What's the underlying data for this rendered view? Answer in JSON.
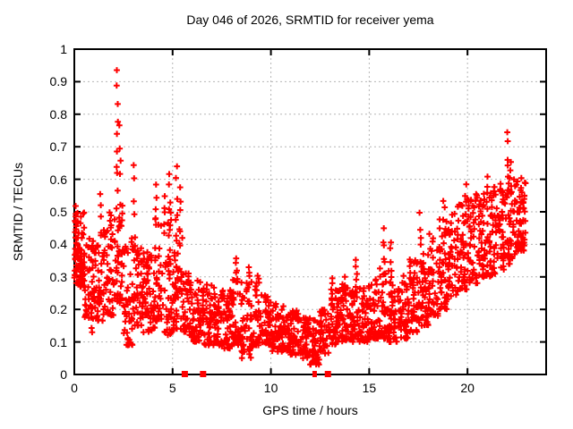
{
  "title": "Day 046 of 2026, SRMTID for receiver yema",
  "x_axis": {
    "label": "GPS time / hours",
    "min": 0,
    "max": 24,
    "tick_values": [
      0,
      5,
      10,
      15,
      20
    ],
    "tick_labels": [
      "0",
      "5",
      "10",
      "15",
      "20"
    ]
  },
  "y_axis": {
    "label": "SRMTID / TECUs",
    "min": 0,
    "max": 1,
    "tick_values": [
      0,
      0.1,
      0.2,
      0.3,
      0.4,
      0.5,
      0.6,
      0.7,
      0.8,
      0.9,
      1
    ],
    "tick_labels": [
      "0",
      "0.1",
      "0.2",
      "0.3",
      "0.4",
      "0.5",
      "0.6",
      "0.7",
      "0.8",
      "0.9",
      "1"
    ]
  },
  "colors": {
    "points": "#ff0000",
    "grid": "#b5b5b5",
    "axis": "#000000",
    "background": "#ffffff"
  },
  "chart_data": {
    "type": "scatter",
    "series_name": "SRMTID",
    "marker": "plus",
    "grid": "on-dashed-both-axes",
    "legend": "none",
    "xlim": [
      0,
      24
    ],
    "ylim": [
      0,
      1
    ],
    "data_time_extent_hours": [
      0.0,
      23.0
    ],
    "seed": 46,
    "envelope_bins": {
      "bin_width_hours": 0.5,
      "columns": [
        "t_start",
        "y_min",
        "y_max",
        "count"
      ],
      "rows": [
        [
          0.0,
          0.27,
          0.5,
          70
        ],
        [
          0.5,
          0.17,
          0.42,
          48
        ],
        [
          1.0,
          0.16,
          0.4,
          46
        ],
        [
          1.5,
          0.18,
          0.5,
          46
        ],
        [
          2.0,
          0.22,
          0.52,
          42
        ],
        [
          2.5,
          0.09,
          0.42,
          46
        ],
        [
          3.0,
          0.15,
          0.45,
          46
        ],
        [
          3.5,
          0.13,
          0.38,
          45
        ],
        [
          4.0,
          0.14,
          0.48,
          45
        ],
        [
          4.5,
          0.12,
          0.5,
          45
        ],
        [
          5.0,
          0.14,
          0.45,
          46
        ],
        [
          5.5,
          0.12,
          0.33,
          44
        ],
        [
          6.0,
          0.1,
          0.3,
          46
        ],
        [
          6.5,
          0.09,
          0.28,
          46
        ],
        [
          7.0,
          0.09,
          0.27,
          46
        ],
        [
          7.5,
          0.08,
          0.26,
          46
        ],
        [
          8.0,
          0.09,
          0.3,
          46
        ],
        [
          8.5,
          0.05,
          0.3,
          44
        ],
        [
          9.0,
          0.09,
          0.3,
          46
        ],
        [
          9.5,
          0.09,
          0.25,
          46
        ],
        [
          10.0,
          0.07,
          0.22,
          46
        ],
        [
          10.5,
          0.07,
          0.21,
          46
        ],
        [
          11.0,
          0.06,
          0.2,
          46
        ],
        [
          11.5,
          0.05,
          0.18,
          46
        ],
        [
          12.0,
          0.03,
          0.18,
          44
        ],
        [
          12.5,
          0.06,
          0.2,
          44
        ],
        [
          13.0,
          0.09,
          0.26,
          46
        ],
        [
          13.5,
          0.1,
          0.28,
          46
        ],
        [
          14.0,
          0.1,
          0.26,
          46
        ],
        [
          14.5,
          0.1,
          0.28,
          46
        ],
        [
          15.0,
          0.11,
          0.3,
          46
        ],
        [
          15.5,
          0.11,
          0.33,
          46
        ],
        [
          16.0,
          0.1,
          0.3,
          46
        ],
        [
          16.5,
          0.11,
          0.32,
          46
        ],
        [
          17.0,
          0.13,
          0.36,
          46
        ],
        [
          17.5,
          0.15,
          0.4,
          46
        ],
        [
          18.0,
          0.18,
          0.44,
          46
        ],
        [
          18.5,
          0.2,
          0.48,
          46
        ],
        [
          19.0,
          0.24,
          0.5,
          46
        ],
        [
          19.5,
          0.26,
          0.54,
          46
        ],
        [
          20.0,
          0.28,
          0.56,
          46
        ],
        [
          20.5,
          0.3,
          0.58,
          46
        ],
        [
          21.0,
          0.3,
          0.58,
          46
        ],
        [
          21.5,
          0.32,
          0.6,
          46
        ],
        [
          22.0,
          0.34,
          0.62,
          46
        ],
        [
          22.5,
          0.38,
          0.6,
          52
        ]
      ]
    },
    "spike_columns": {
      "columns": [
        "t",
        "y_base",
        "y_peak",
        "count"
      ],
      "rows": [
        [
          0.08,
          0.3,
          0.52,
          14
        ],
        [
          0.9,
          0.12,
          0.2,
          4
        ],
        [
          1.35,
          0.4,
          0.57,
          5
        ],
        [
          2.18,
          0.5,
          0.95,
          10
        ],
        [
          2.32,
          0.45,
          0.8,
          6
        ],
        [
          3.05,
          0.4,
          0.67,
          5
        ],
        [
          4.15,
          0.44,
          0.6,
          5
        ],
        [
          4.6,
          0.42,
          0.55,
          4
        ],
        [
          4.85,
          0.45,
          0.62,
          5
        ],
        [
          5.2,
          0.4,
          0.66,
          6
        ],
        [
          5.38,
          0.38,
          0.6,
          5
        ],
        [
          8.25,
          0.28,
          0.37,
          5
        ],
        [
          8.9,
          0.27,
          0.34,
          4
        ],
        [
          9.3,
          0.24,
          0.31,
          4
        ],
        [
          12.1,
          0.035,
          0.08,
          3
        ],
        [
          13.1,
          0.24,
          0.31,
          4
        ],
        [
          13.8,
          0.24,
          0.3,
          4
        ],
        [
          14.35,
          0.26,
          0.36,
          5
        ],
        [
          15.75,
          0.3,
          0.45,
          6
        ],
        [
          16.1,
          0.28,
          0.42,
          5
        ],
        [
          17.6,
          0.34,
          0.5,
          5
        ],
        [
          18.8,
          0.4,
          0.55,
          5
        ],
        [
          19.9,
          0.45,
          0.6,
          5
        ],
        [
          21.0,
          0.5,
          0.62,
          5
        ],
        [
          22.05,
          0.55,
          0.76,
          6
        ],
        [
          22.2,
          0.5,
          0.68,
          4
        ],
        [
          22.7,
          0.45,
          0.63,
          5
        ]
      ]
    },
    "axis_markers": {
      "description": "red filled squares sitting on the x-axis (y=0)",
      "t_wide": [
        5.62,
        6.55,
        12.9
      ],
      "t_narrow": [
        12.18,
        12.27
      ]
    }
  }
}
